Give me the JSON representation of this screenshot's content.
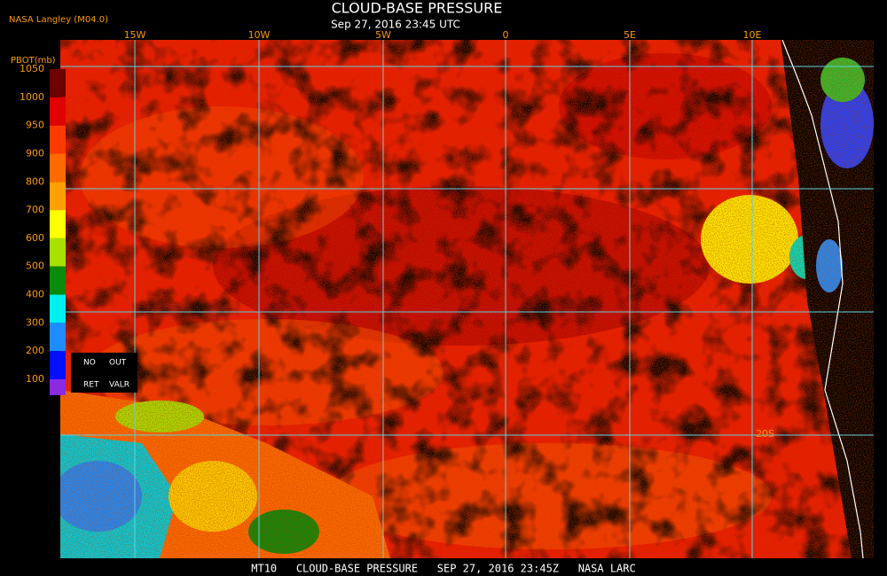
{
  "header": {
    "credit": "NASA Langley (M04.0)",
    "title": "CLOUD-BASE PRESSURE",
    "subtitle": "Sep 27, 2016 23:45 UTC"
  },
  "colorbar": {
    "unit": "PBOT(mb)",
    "labels": [
      "1050",
      "1000",
      "950",
      "900",
      "800",
      "700",
      "600",
      "500",
      "400",
      "300",
      "200",
      "100"
    ],
    "colors": [
      "#6e0000",
      "#e00000",
      "#ff3a00",
      "#ff6a00",
      "#ffa000",
      "#ffff00",
      "#a8e000",
      "#0a8a0a",
      "#00f0f0",
      "#1e8cff",
      "#0010ff",
      "#8a2be2"
    ]
  },
  "legend_box": {
    "row1": [
      "NO",
      "OUT"
    ],
    "row2": [
      "RET",
      "VALR"
    ]
  },
  "grid": {
    "lon_labels": [
      "15W",
      "10W",
      "5W",
      "0",
      "5E",
      "10E"
    ],
    "lat_labels": [
      "20S"
    ]
  },
  "footer": "MT10   CLOUD-BASE PRESSURE   SEP 27, 2016 23:45Z   NASA LARC"
}
